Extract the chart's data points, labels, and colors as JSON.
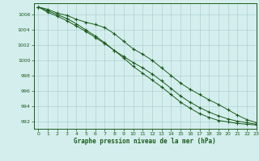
{
  "title": "Graphe pression niveau de la mer (hPa)",
  "background_color": "#d4eeee",
  "grid_color": "#aed0d0",
  "line_color": "#1a5c1a",
  "xlim": [
    -0.5,
    23
  ],
  "ylim": [
    991.0,
    1007.5
  ],
  "yticks": [
    992,
    994,
    996,
    998,
    1000,
    1002,
    1004,
    1006
  ],
  "xticks": [
    0,
    1,
    2,
    3,
    4,
    5,
    6,
    7,
    8,
    9,
    10,
    11,
    12,
    13,
    14,
    15,
    16,
    17,
    18,
    19,
    20,
    21,
    22,
    23
  ],
  "series": [
    [
      1007.0,
      1006.7,
      1006.2,
      1005.9,
      1005.4,
      1005.0,
      1004.7,
      1004.3,
      1003.5,
      1002.5,
      1001.5,
      1000.8,
      1000.0,
      999.0,
      998.0,
      997.0,
      996.2,
      995.5,
      994.8,
      994.2,
      993.5,
      992.8,
      992.2,
      991.8
    ],
    [
      1007.0,
      1006.3,
      1005.8,
      1005.2,
      1004.5,
      1003.8,
      1003.0,
      1002.2,
      1001.3,
      1000.5,
      999.7,
      999.0,
      998.2,
      997.3,
      996.3,
      995.3,
      994.5,
      993.8,
      993.2,
      992.7,
      992.3,
      992.0,
      991.8,
      991.6
    ],
    [
      1007.0,
      1006.5,
      1006.0,
      1005.5,
      1004.8,
      1004.0,
      1003.2,
      1002.3,
      1001.3,
      1000.3,
      999.2,
      998.3,
      997.4,
      996.5,
      995.5,
      994.5,
      993.7,
      993.0,
      992.5,
      992.1,
      991.9,
      991.7,
      991.6,
      991.5
    ]
  ]
}
